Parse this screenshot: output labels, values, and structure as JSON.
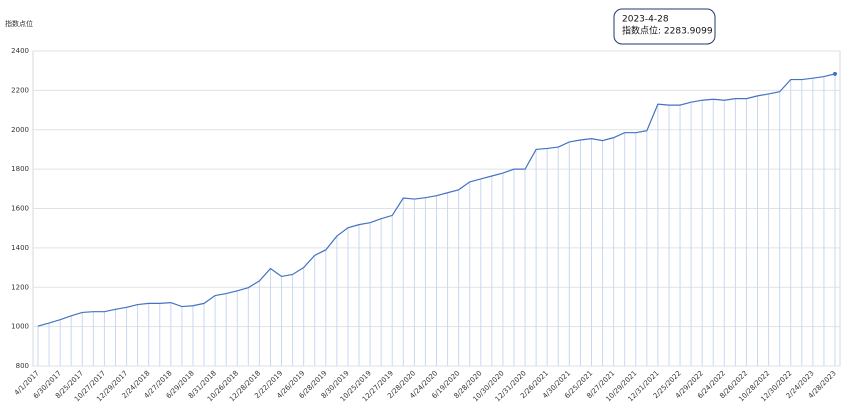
{
  "chart_data": {
    "type": "line",
    "y_label": "指数点位",
    "categories": [
      "4/1/2017",
      null,
      "6/30/2017",
      null,
      "8/25/2017",
      null,
      "10/27/2017",
      null,
      "12/29/2017",
      null,
      "2/24/2018",
      null,
      "4/27/2018",
      null,
      "6/29/2018",
      null,
      "8/31/2018",
      null,
      "10/26/2018",
      null,
      "12/28/2018",
      null,
      "2/22/2019",
      null,
      "4/26/2019",
      null,
      "6/28/2019",
      null,
      "8/30/2019",
      null,
      "10/25/2019",
      null,
      "12/27/2019",
      null,
      "2/28/2020",
      null,
      "4/24/2020",
      null,
      "6/19/2020",
      null,
      "8/28/2020",
      null,
      "10/30/2020",
      null,
      "12/31/2020",
      null,
      "2/26/2021",
      null,
      "4/30/2021",
      null,
      "6/25/2021",
      null,
      "8/27/2021",
      null,
      "10/29/2021",
      null,
      "12/31/2021",
      null,
      "2/25/2022",
      null,
      "4/29/2022",
      null,
      "6/24/2022",
      null,
      "8/26/2022",
      null,
      "10/28/2022",
      null,
      "12/30/2022",
      null,
      "2/24/2023",
      null,
      "4/28/2023"
    ],
    "series": [
      {
        "name": "指数点位",
        "color": "#4472c4",
        "values": [
          1003,
          1018,
          1035,
          1055,
          1072,
          1076,
          1076,
          1088,
          1098,
          1112,
          1118,
          1118,
          1122,
          1102,
          1106,
          1118,
          1158,
          1168,
          1182,
          1198,
          1232,
          1295,
          1255,
          1265,
          1300,
          1362,
          1390,
          1460,
          1502,
          1518,
          1528,
          1548,
          1565,
          1653,
          1648,
          1655,
          1665,
          1680,
          1695,
          1735,
          1750,
          1765,
          1780,
          1800,
          1800,
          1900,
          1905,
          1912,
          1938,
          1948,
          1955,
          1945,
          1960,
          1985,
          1985,
          1995,
          2130,
          2125,
          2125,
          2140,
          2150,
          2155,
          2150,
          2158,
          2158,
          2172,
          2182,
          2193,
          2255,
          2255,
          2262,
          2270,
          2283.9099
        ]
      }
    ],
    "ylim": [
      800,
      2400
    ],
    "yticks": [
      800,
      1000,
      1200,
      1400,
      1600,
      1800,
      2000,
      2200,
      2400
    ],
    "grid": true,
    "tooltip": {
      "date": "2023-4-28",
      "text": "指数点位: 2283.9099"
    }
  }
}
